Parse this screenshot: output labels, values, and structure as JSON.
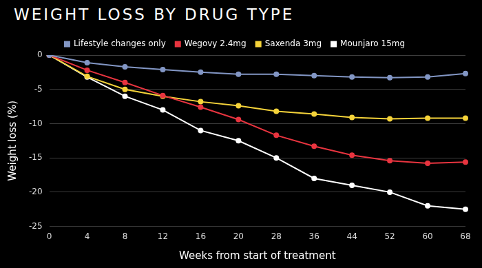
{
  "chart_data": {
    "type": "line",
    "title": "WEIGHT LOSS BY DRUG TYPE",
    "x_label": "Weeks from start of treatment",
    "y_label": "Weight loss (%)",
    "categories": [
      "0",
      "4",
      "8",
      "12",
      "16",
      "20",
      "28",
      "36",
      "44",
      "52",
      "60",
      "68"
    ],
    "series": [
      {
        "name": "Lifestyle changes only",
        "color": "#8296c4",
        "values": [
          0,
          -1.1,
          -1.7,
          -2.1,
          -2.5,
          -2.8,
          -2.8,
          -3.0,
          -3.2,
          -3.3,
          -3.2,
          -2.7
        ]
      },
      {
        "name": "Wegovy 2.4mg",
        "color": "#e8343f",
        "values": [
          0,
          -2.2,
          -4.0,
          -5.9,
          -7.6,
          -9.4,
          -11.7,
          -13.3,
          -14.6,
          -15.4,
          -15.8,
          -15.6
        ]
      },
      {
        "name": "Saxenda 3mg",
        "color": "#f5d33a",
        "values": [
          0,
          -3.1,
          -5.0,
          -6.0,
          -6.8,
          -7.4,
          -8.2,
          -8.6,
          -9.1,
          -9.3,
          -9.2,
          -9.2
        ]
      },
      {
        "name": "Mounjaro 15mg",
        "color": "#ffffff",
        "values": [
          0,
          -3.2,
          -6.0,
          -8.0,
          -11.0,
          -12.5,
          -15.0,
          -18.0,
          -19.0,
          -20.0,
          -22.0,
          -22.5
        ]
      }
    ],
    "ylim": [
      -25,
      0
    ],
    "yticks": [
      -25,
      -20,
      -15,
      -10,
      -5,
      0
    ],
    "grid": true,
    "legend": "top",
    "marker": "circle",
    "line_style": "solid"
  }
}
